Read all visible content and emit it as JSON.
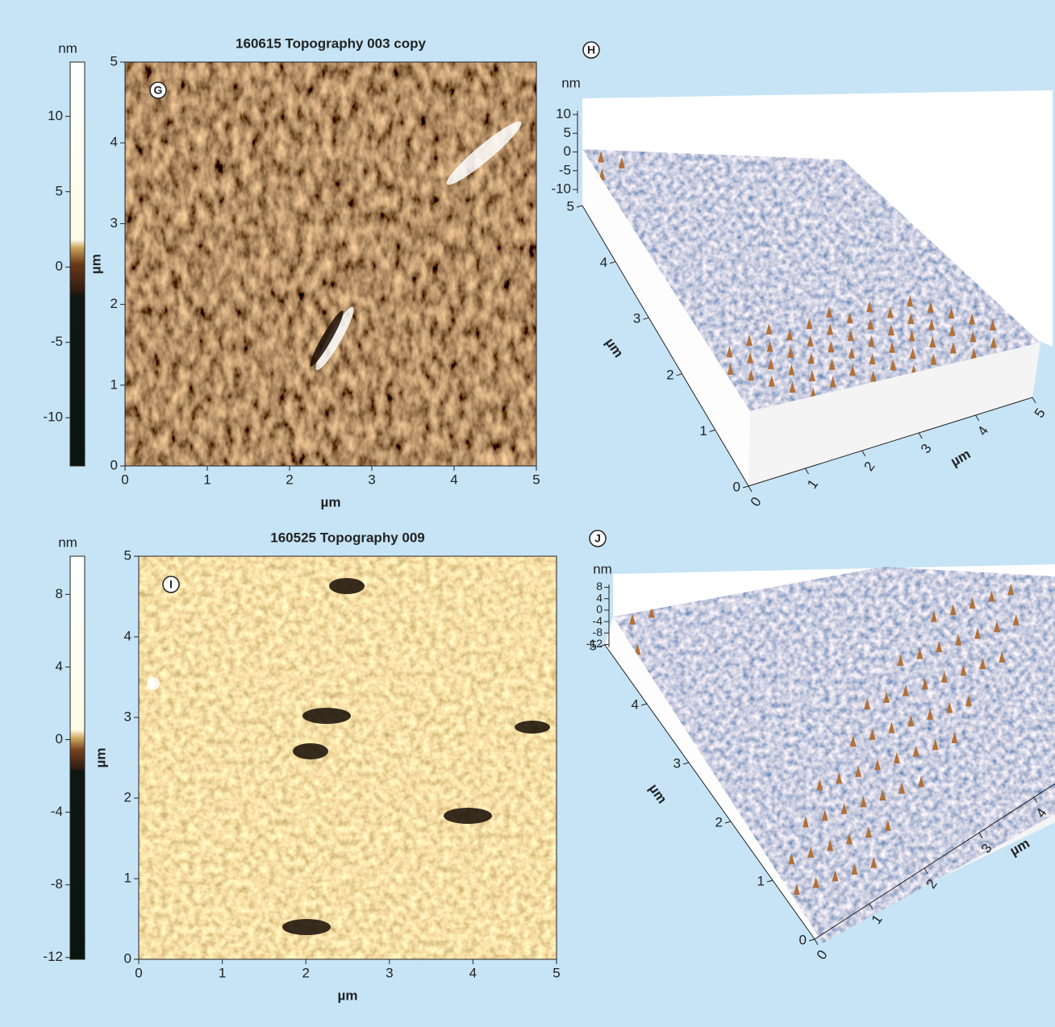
{
  "panels": [
    {
      "label": "G",
      "title": "160615 Topography 003 copy",
      "colorbar": {
        "unit": "nm",
        "zlim": [
          -13.2,
          13.6
        ],
        "ticks": [
          10,
          5,
          0,
          -5,
          -10
        ]
      },
      "x_label": "µm",
      "xlim": [
        0,
        5
      ],
      "xticks": [
        0,
        1,
        2,
        3,
        4,
        5
      ],
      "y_label": "µm",
      "ylim": [
        0,
        5
      ],
      "yticks": [
        0,
        1,
        2,
        3,
        4,
        5
      ]
    },
    {
      "label": "H",
      "z_unit": "nm",
      "zlim": [
        -11,
        11
      ],
      "zticks": [
        10,
        5,
        0,
        -5,
        -10
      ],
      "x_label": "µm",
      "xlim": [
        0,
        5
      ],
      "xticks": [
        0,
        1,
        2,
        3,
        4,
        5
      ],
      "y_label": "µm",
      "ylim": [
        0,
        5
      ],
      "yticks": [
        0,
        1,
        2,
        3,
        4,
        5
      ]
    },
    {
      "label": "I",
      "title": "160525 Topography 009",
      "colorbar": {
        "unit": "nm",
        "zlim": [
          -12.1,
          10.1
        ],
        "ticks": [
          8,
          4,
          0,
          -4,
          -8,
          -12
        ]
      },
      "x_label": "µm",
      "xlim": [
        0,
        5
      ],
      "xticks": [
        0,
        1,
        2,
        3,
        4,
        5
      ],
      "y_label": "µm",
      "ylim": [
        0,
        5
      ],
      "yticks": [
        0,
        1,
        2,
        3,
        4,
        5
      ]
    },
    {
      "label": "J",
      "z_unit": "nm",
      "zlim": [
        -13,
        9
      ],
      "zticks": [
        8,
        4,
        0,
        -4,
        -8,
        -12
      ],
      "x_label": "µm",
      "xlim": [
        0,
        5
      ],
      "xticks": [
        0,
        1,
        2,
        3,
        4
      ],
      "y_label": "µm",
      "ylim": [
        0,
        5
      ],
      "yticks": [
        0,
        1,
        2,
        3,
        4,
        5
      ]
    }
  ]
}
